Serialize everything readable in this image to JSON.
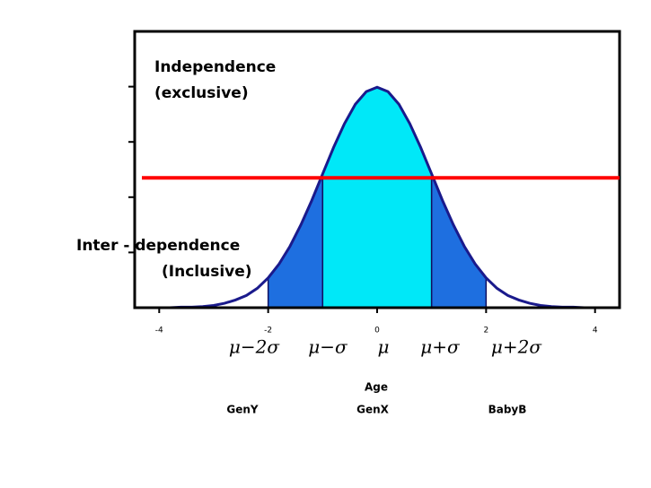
{
  "chart_data": {
    "type": "area",
    "x": [
      -4.4,
      -4.2,
      -4.0,
      -3.8,
      -3.6,
      -3.4,
      -3.2,
      -3.0,
      -2.8,
      -2.6,
      -2.4,
      -2.2,
      -2.0,
      -1.8,
      -1.6,
      -1.4,
      -1.2,
      -1.0,
      -0.8,
      -0.6,
      -0.4,
      -0.2,
      0,
      0.2,
      0.4,
      0.6,
      0.8,
      1.0,
      1.2,
      1.4,
      1.6,
      1.8,
      2.0,
      2.2,
      2.4,
      2.6,
      2.8,
      3.0,
      3.2,
      3.4,
      3.6,
      3.8,
      4.0,
      4.2,
      4.4
    ],
    "values": [
      0,
      0,
      0,
      0,
      0.001,
      0.001,
      0.002,
      0.004,
      0.008,
      0.014,
      0.022,
      0.035,
      0.054,
      0.079,
      0.111,
      0.15,
      0.194,
      0.242,
      0.29,
      0.333,
      0.368,
      0.391,
      0.399,
      0.391,
      0.368,
      0.333,
      0.29,
      0.242,
      0.194,
      0.15,
      0.111,
      0.079,
      0.054,
      0.035,
      0.022,
      0.014,
      0.008,
      0.004,
      0.002,
      0.001,
      0.001,
      0,
      0,
      0,
      0
    ],
    "color": "#1a1a8c",
    "bands": [
      {
        "from": -2,
        "to": -1,
        "color": "#1e6fe0"
      },
      {
        "from": -1,
        "to": 1,
        "color": "#00e8f8"
      },
      {
        "from": 1,
        "to": 2,
        "color": "#1e6fe0"
      }
    ],
    "threshold": {
      "value": 0.235,
      "color": "#ff0000"
    },
    "xlim": [
      -4.45,
      4.45
    ],
    "xticks": [
      -4,
      -2,
      0,
      2,
      4
    ],
    "ylim": [
      0,
      0.5
    ],
    "yticks": [
      0.1,
      0.2,
      0.3,
      0.4
    ],
    "sigma_labels": [
      "μ−2σ",
      "μ−σ",
      "μ",
      "μ+σ",
      "μ+2σ"
    ],
    "annotations": [
      "Independence",
      "(exclusive)",
      "Inter  - dependence",
      "(Inclusive)"
    ],
    "xlabel": "Age",
    "generations": [
      "GenY",
      "GenX",
      "BabyB"
    ]
  }
}
